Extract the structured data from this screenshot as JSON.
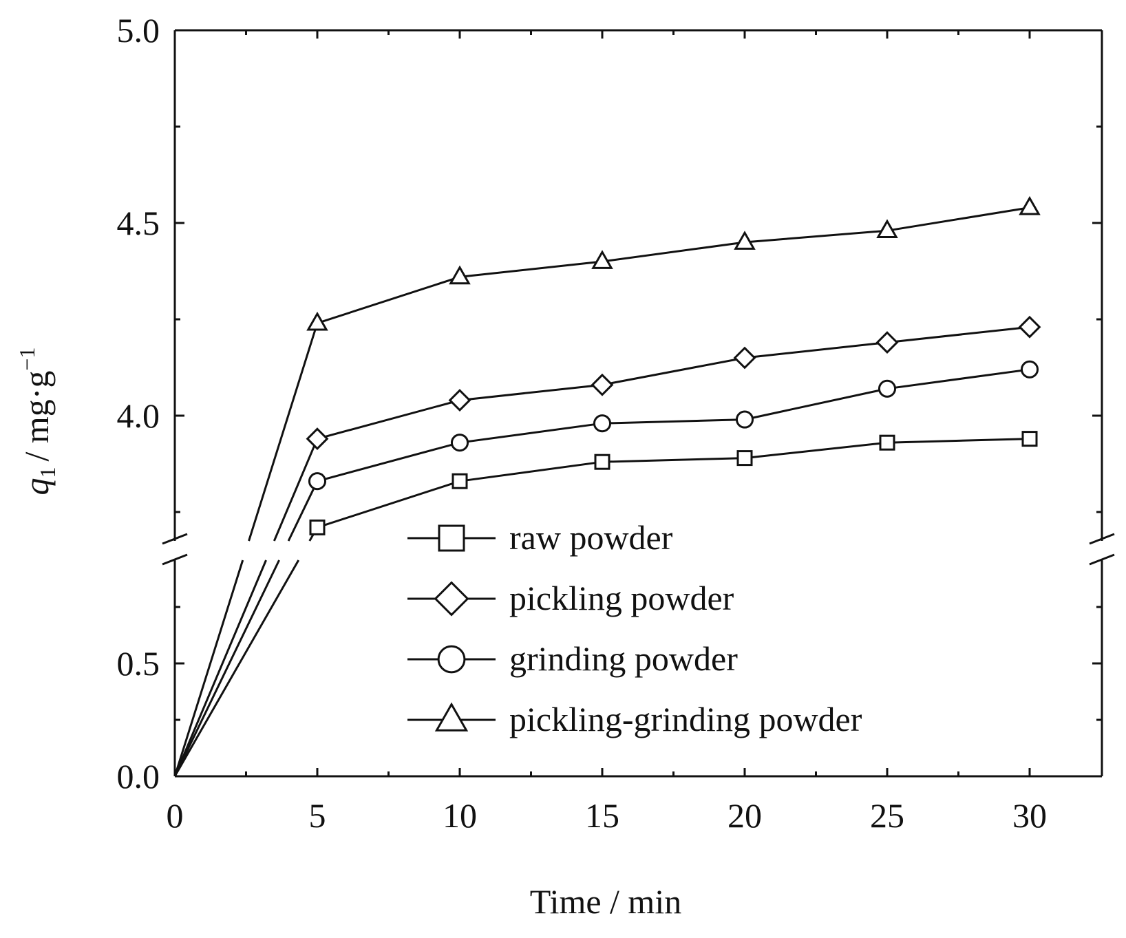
{
  "chart_data": {
    "type": "line",
    "xlabel": "Time / min",
    "ylabel": {
      "symbol": "q",
      "subscript": "1",
      "unit_text": "/ mg·g",
      "unit_superscript": "−1"
    },
    "x_ticks": [
      "0",
      "5",
      "10",
      "15",
      "20",
      "25",
      "30"
    ],
    "x_tick_values": [
      0,
      5,
      10,
      15,
      20,
      25,
      30
    ],
    "y_ticks_upper": [
      "4.0",
      "4.5",
      "5.0"
    ],
    "y_ticks_lower": [
      "0.0",
      "0.5"
    ],
    "xlim": [
      0,
      32.5
    ],
    "ylim_lower": [
      0,
      1.0
    ],
    "ylim_upper": [
      3.65,
      5.0
    ],
    "axis_break": true,
    "grid": false,
    "legend_position": "bottom-right",
    "x": [
      0,
      5,
      10,
      15,
      20,
      25,
      30
    ],
    "series": [
      {
        "name": "raw powder",
        "marker": "square",
        "values": [
          0,
          3.71,
          3.83,
          3.88,
          3.89,
          3.93,
          3.94
        ]
      },
      {
        "name": "pickling powder",
        "marker": "diamond",
        "values": [
          0,
          3.94,
          4.04,
          4.08,
          4.15,
          4.19,
          4.23
        ]
      },
      {
        "name": "grinding powder",
        "marker": "circle",
        "values": [
          0,
          3.83,
          3.93,
          3.98,
          3.99,
          4.07,
          4.12
        ]
      },
      {
        "name": "pickling-grinding powder",
        "marker": "triangle",
        "values": [
          0,
          4.24,
          4.36,
          4.4,
          4.45,
          4.48,
          4.54
        ]
      }
    ]
  }
}
